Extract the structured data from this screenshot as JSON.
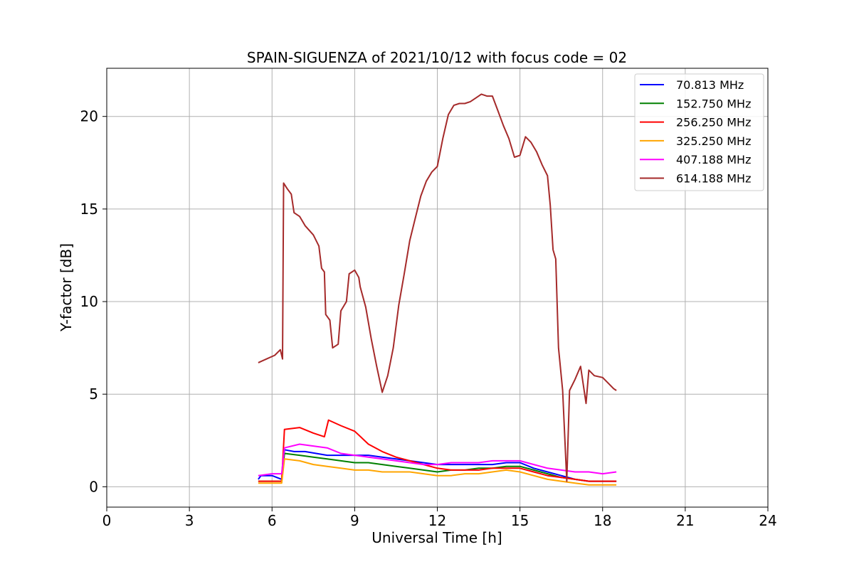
{
  "chart_data": {
    "type": "line",
    "title": "SPAIN-SIGUENZA of 2021/10/12 with focus code = 02",
    "xlabel": "Universal Time [h]",
    "ylabel": "Y-factor [dB]",
    "xlim": [
      0,
      24
    ],
    "ylim": [
      -1.1,
      22.6
    ],
    "xticks": [
      0,
      3,
      6,
      9,
      12,
      15,
      18,
      21,
      24
    ],
    "yticks": [
      0,
      5,
      10,
      15,
      20
    ],
    "grid": true,
    "legend_position": "top-right",
    "series": [
      {
        "name": " 70.813 MHz",
        "color": "#0000ff",
        "points": [
          [
            5.5,
            0.4
          ],
          [
            5.6,
            0.6
          ],
          [
            6.0,
            0.6
          ],
          [
            6.35,
            0.4
          ],
          [
            6.45,
            2.0
          ],
          [
            6.8,
            1.9
          ],
          [
            7.2,
            1.9
          ],
          [
            7.6,
            1.8
          ],
          [
            8.0,
            1.7
          ],
          [
            8.5,
            1.7
          ],
          [
            9.0,
            1.7
          ],
          [
            9.5,
            1.7
          ],
          [
            10.0,
            1.6
          ],
          [
            10.5,
            1.5
          ],
          [
            11.0,
            1.4
          ],
          [
            11.5,
            1.3
          ],
          [
            12.0,
            1.2
          ],
          [
            12.5,
            1.2
          ],
          [
            13.0,
            1.2
          ],
          [
            13.5,
            1.2
          ],
          [
            14.0,
            1.2
          ],
          [
            14.5,
            1.3
          ],
          [
            15.0,
            1.3
          ],
          [
            15.5,
            1.0
          ],
          [
            16.0,
            0.8
          ],
          [
            16.5,
            0.6
          ],
          [
            17.0,
            0.4
          ],
          [
            17.5,
            0.3
          ],
          [
            18.0,
            0.3
          ],
          [
            18.5,
            0.3
          ]
        ]
      },
      {
        "name": "152.750 MHz",
        "color": "#008000",
        "points": [
          [
            5.5,
            0.3
          ],
          [
            6.0,
            0.3
          ],
          [
            6.35,
            0.3
          ],
          [
            6.45,
            1.8
          ],
          [
            7.0,
            1.7
          ],
          [
            7.5,
            1.6
          ],
          [
            8.0,
            1.5
          ],
          [
            8.5,
            1.4
          ],
          [
            9.0,
            1.3
          ],
          [
            9.5,
            1.3
          ],
          [
            10.0,
            1.2
          ],
          [
            10.5,
            1.1
          ],
          [
            11.0,
            1.0
          ],
          [
            11.5,
            0.9
          ],
          [
            12.0,
            0.8
          ],
          [
            12.5,
            0.9
          ],
          [
            13.0,
            0.9
          ],
          [
            13.5,
            1.0
          ],
          [
            14.0,
            1.0
          ],
          [
            14.5,
            1.1
          ],
          [
            15.0,
            1.1
          ],
          [
            15.5,
            0.9
          ],
          [
            16.0,
            0.7
          ],
          [
            16.5,
            0.5
          ],
          [
            17.0,
            0.4
          ],
          [
            17.5,
            0.3
          ],
          [
            18.0,
            0.3
          ],
          [
            18.5,
            0.3
          ]
        ]
      },
      {
        "name": "256.250 MHz",
        "color": "#ff0000",
        "points": [
          [
            5.5,
            0.3
          ],
          [
            6.0,
            0.3
          ],
          [
            6.35,
            0.3
          ],
          [
            6.45,
            3.1
          ],
          [
            7.0,
            3.2
          ],
          [
            7.5,
            2.9
          ],
          [
            7.9,
            2.7
          ],
          [
            8.05,
            3.6
          ],
          [
            8.5,
            3.3
          ],
          [
            9.0,
            3.0
          ],
          [
            9.5,
            2.3
          ],
          [
            10.0,
            1.9
          ],
          [
            10.5,
            1.6
          ],
          [
            11.0,
            1.4
          ],
          [
            11.5,
            1.2
          ],
          [
            12.0,
            1.0
          ],
          [
            12.5,
            0.9
          ],
          [
            13.0,
            0.9
          ],
          [
            13.5,
            0.9
          ],
          [
            14.0,
            1.0
          ],
          [
            14.5,
            1.0
          ],
          [
            15.0,
            1.0
          ],
          [
            15.5,
            0.8
          ],
          [
            16.0,
            0.6
          ],
          [
            16.5,
            0.5
          ],
          [
            17.0,
            0.4
          ],
          [
            17.5,
            0.3
          ],
          [
            18.0,
            0.3
          ],
          [
            18.5,
            0.3
          ]
        ]
      },
      {
        "name": "325.250 MHz",
        "color": "#ffa500",
        "points": [
          [
            5.5,
            0.2
          ],
          [
            6.0,
            0.2
          ],
          [
            6.35,
            0.2
          ],
          [
            6.45,
            1.5
          ],
          [
            7.0,
            1.4
          ],
          [
            7.5,
            1.2
          ],
          [
            8.0,
            1.1
          ],
          [
            8.5,
            1.0
          ],
          [
            9.0,
            0.9
          ],
          [
            9.5,
            0.9
          ],
          [
            10.0,
            0.8
          ],
          [
            10.5,
            0.8
          ],
          [
            11.0,
            0.8
          ],
          [
            11.5,
            0.7
          ],
          [
            12.0,
            0.6
          ],
          [
            12.5,
            0.6
          ],
          [
            13.0,
            0.7
          ],
          [
            13.5,
            0.7
          ],
          [
            14.0,
            0.8
          ],
          [
            14.5,
            0.9
          ],
          [
            15.0,
            0.8
          ],
          [
            15.5,
            0.6
          ],
          [
            16.0,
            0.4
          ],
          [
            16.5,
            0.3
          ],
          [
            17.0,
            0.2
          ],
          [
            17.5,
            0.1
          ],
          [
            18.0,
            0.1
          ],
          [
            18.5,
            0.1
          ]
        ]
      },
      {
        "name": "407.188 MHz",
        "color": "#ff00ff",
        "points": [
          [
            5.5,
            0.6
          ],
          [
            6.0,
            0.7
          ],
          [
            6.35,
            0.7
          ],
          [
            6.45,
            2.1
          ],
          [
            7.0,
            2.3
          ],
          [
            7.5,
            2.2
          ],
          [
            8.0,
            2.1
          ],
          [
            8.5,
            1.8
          ],
          [
            9.0,
            1.7
          ],
          [
            9.5,
            1.6
          ],
          [
            10.0,
            1.5
          ],
          [
            10.5,
            1.4
          ],
          [
            11.0,
            1.3
          ],
          [
            11.5,
            1.2
          ],
          [
            12.0,
            1.2
          ],
          [
            12.5,
            1.3
          ],
          [
            13.0,
            1.3
          ],
          [
            13.5,
            1.3
          ],
          [
            14.0,
            1.4
          ],
          [
            14.5,
            1.4
          ],
          [
            15.0,
            1.4
          ],
          [
            15.5,
            1.2
          ],
          [
            16.0,
            1.0
          ],
          [
            16.5,
            0.9
          ],
          [
            17.0,
            0.8
          ],
          [
            17.5,
            0.8
          ],
          [
            18.0,
            0.7
          ],
          [
            18.5,
            0.8
          ]
        ]
      },
      {
        "name": "614.188 MHz",
        "color": "#a52a2a",
        "points": [
          [
            5.5,
            6.7
          ],
          [
            5.8,
            6.9
          ],
          [
            6.1,
            7.1
          ],
          [
            6.3,
            7.4
          ],
          [
            6.38,
            6.9
          ],
          [
            6.42,
            16.4
          ],
          [
            6.55,
            16.1
          ],
          [
            6.7,
            15.8
          ],
          [
            6.8,
            14.8
          ],
          [
            7.0,
            14.6
          ],
          [
            7.2,
            14.1
          ],
          [
            7.5,
            13.6
          ],
          [
            7.7,
            13.0
          ],
          [
            7.8,
            11.8
          ],
          [
            7.9,
            11.6
          ],
          [
            7.95,
            9.3
          ],
          [
            8.1,
            9.0
          ],
          [
            8.2,
            7.5
          ],
          [
            8.4,
            7.7
          ],
          [
            8.5,
            9.5
          ],
          [
            8.7,
            10.0
          ],
          [
            8.8,
            11.5
          ],
          [
            9.0,
            11.7
          ],
          [
            9.15,
            11.3
          ],
          [
            9.2,
            10.8
          ],
          [
            9.4,
            9.7
          ],
          [
            9.6,
            8.0
          ],
          [
            9.8,
            6.5
          ],
          [
            10.0,
            5.1
          ],
          [
            10.2,
            6.0
          ],
          [
            10.4,
            7.5
          ],
          [
            10.6,
            9.8
          ],
          [
            10.8,
            11.5
          ],
          [
            11.0,
            13.3
          ],
          [
            11.2,
            14.5
          ],
          [
            11.4,
            15.7
          ],
          [
            11.6,
            16.5
          ],
          [
            11.8,
            17.0
          ],
          [
            12.0,
            17.3
          ],
          [
            12.2,
            18.8
          ],
          [
            12.4,
            20.1
          ],
          [
            12.6,
            20.6
          ],
          [
            12.8,
            20.7
          ],
          [
            13.0,
            20.7
          ],
          [
            13.2,
            20.8
          ],
          [
            13.4,
            21.0
          ],
          [
            13.6,
            21.2
          ],
          [
            13.8,
            21.1
          ],
          [
            14.0,
            21.1
          ],
          [
            14.2,
            20.3
          ],
          [
            14.4,
            19.5
          ],
          [
            14.6,
            18.8
          ],
          [
            14.8,
            17.8
          ],
          [
            15.0,
            17.9
          ],
          [
            15.2,
            18.9
          ],
          [
            15.4,
            18.6
          ],
          [
            15.6,
            18.1
          ],
          [
            15.8,
            17.4
          ],
          [
            16.0,
            16.8
          ],
          [
            16.1,
            15.2
          ],
          [
            16.2,
            12.8
          ],
          [
            16.3,
            12.3
          ],
          [
            16.4,
            7.5
          ],
          [
            16.55,
            5.2
          ],
          [
            16.7,
            0.3
          ],
          [
            16.8,
            5.2
          ],
          [
            17.0,
            5.8
          ],
          [
            17.2,
            6.5
          ],
          [
            17.4,
            4.5
          ],
          [
            17.5,
            6.3
          ],
          [
            17.7,
            6.0
          ],
          [
            18.0,
            5.9
          ],
          [
            18.2,
            5.6
          ],
          [
            18.4,
            5.3
          ],
          [
            18.5,
            5.2
          ]
        ]
      }
    ]
  }
}
